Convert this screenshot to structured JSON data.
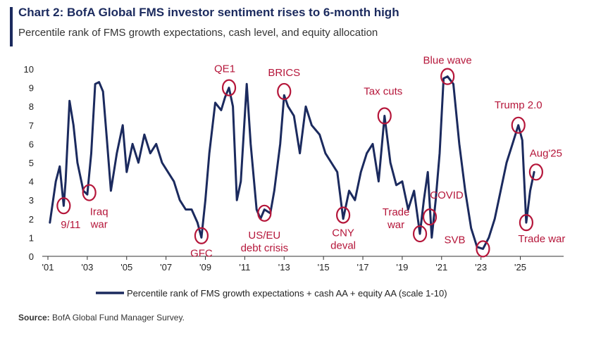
{
  "header": {
    "title": "Chart 2: BofA Global FMS investor sentiment rises to 6-month high",
    "subtitle": "Percentile rank of FMS growth expectations, cash level, and equity allocation"
  },
  "footer": {
    "source_label": "Source:",
    "source_text": "BofA Global Fund Manager Survey."
  },
  "colors": {
    "line": "#1b2a5e",
    "annotation": "#b5163a",
    "axis": "#333333"
  },
  "chart_data": {
    "type": "line",
    "title": "Chart 2: BofA Global FMS investor sentiment rises to 6-month high",
    "subtitle": "Percentile rank of FMS growth expectations, cash level, and equity allocation",
    "xlabel": "",
    "ylabel": "",
    "xlim": [
      2001.0,
      2027.2
    ],
    "ylim": [
      0,
      10
    ],
    "x_ticks": [
      2001,
      2003,
      2005,
      2007,
      2009,
      2011,
      2013,
      2015,
      2017,
      2019,
      2021,
      2023,
      2025
    ],
    "x_tick_labels": [
      "'01",
      "'03",
      "'05",
      "'07",
      "'09",
      "'11",
      "'13",
      "'15",
      "'17",
      "'19",
      "'21",
      "'23",
      "'25"
    ],
    "y_ticks": [
      0,
      1,
      2,
      3,
      4,
      5,
      6,
      7,
      8,
      9,
      10
    ],
    "y_tick_labels": [
      "0",
      "1",
      "2",
      "3",
      "4",
      "5",
      "6",
      "7",
      "8",
      "9",
      "10"
    ],
    "grid": false,
    "legend_position": "bottom",
    "series": [
      {
        "name": "Percentile rank of FMS growth expectations + cash AA + equity AA (scale 1-10)",
        "x": [
          2001.1,
          2001.4,
          2001.6,
          2001.8,
          2001.9,
          2002.1,
          2002.3,
          2002.5,
          2002.8,
          2003.0,
          2003.2,
          2003.4,
          2003.6,
          2003.8,
          2004.0,
          2004.2,
          2004.5,
          2004.8,
          2005.0,
          2005.3,
          2005.6,
          2005.9,
          2006.2,
          2006.5,
          2006.8,
          2007.1,
          2007.4,
          2007.7,
          2008.0,
          2008.3,
          2008.6,
          2008.8,
          2009.0,
          2009.2,
          2009.5,
          2009.8,
          2010.0,
          2010.2,
          2010.4,
          2010.6,
          2010.8,
          2011.1,
          2011.3,
          2011.6,
          2011.8,
          2012.0,
          2012.3,
          2012.5,
          2012.8,
          2013.0,
          2013.2,
          2013.5,
          2013.8,
          2014.1,
          2014.4,
          2014.8,
          2015.1,
          2015.4,
          2015.7,
          2016.0,
          2016.3,
          2016.6,
          2016.9,
          2017.2,
          2017.5,
          2017.8,
          2018.1,
          2018.4,
          2018.7,
          2019.0,
          2019.3,
          2019.6,
          2019.9,
          2020.1,
          2020.3,
          2020.5,
          2020.7,
          2020.9,
          2021.1,
          2021.3,
          2021.6,
          2021.9,
          2022.2,
          2022.5,
          2022.8,
          2023.1,
          2023.4,
          2023.7,
          2024.0,
          2024.3,
          2024.6,
          2024.9,
          2025.1,
          2025.3,
          2025.5,
          2025.7
        ],
        "values": [
          1.8,
          4.0,
          4.8,
          2.7,
          4.0,
          8.3,
          7.0,
          5.0,
          3.5,
          3.3,
          5.5,
          9.2,
          9.3,
          8.8,
          6.2,
          3.5,
          5.5,
          7.0,
          4.5,
          6.0,
          5.0,
          6.5,
          5.5,
          6.0,
          5.0,
          4.5,
          4.0,
          3.0,
          2.5,
          2.5,
          1.8,
          1.0,
          3.0,
          5.5,
          8.2,
          7.8,
          8.5,
          9.0,
          8.0,
          3.0,
          4.0,
          9.2,
          6.0,
          2.5,
          2.0,
          2.5,
          2.3,
          3.5,
          6.0,
          8.6,
          8.0,
          7.5,
          5.5,
          8.0,
          7.0,
          6.5,
          5.5,
          5.0,
          4.5,
          2.0,
          3.5,
          3.0,
          4.5,
          5.5,
          6.0,
          4.0,
          7.5,
          5.0,
          3.8,
          4.0,
          2.5,
          3.5,
          1.2,
          3.0,
          4.5,
          1.0,
          3.0,
          5.5,
          9.5,
          9.6,
          9.2,
          6.0,
          3.5,
          1.5,
          0.5,
          0.4,
          1.0,
          2.0,
          3.5,
          5.0,
          6.0,
          7.0,
          6.2,
          1.8,
          3.5,
          4.5
        ]
      }
    ],
    "annotations": [
      {
        "text": "9/11",
        "x": 2001.8,
        "y": 2.7
      },
      {
        "text": "Iraq war",
        "x": 2003.1,
        "y": 3.4
      },
      {
        "text": "GFC",
        "x": 2008.8,
        "y": 1.1
      },
      {
        "text": "QE1",
        "x": 2010.2,
        "y": 9.0
      },
      {
        "text": "US/EU debt crisis",
        "x": 2012.0,
        "y": 2.3
      },
      {
        "text": "BRICS",
        "x": 2013.0,
        "y": 8.8
      },
      {
        "text": "CNY deval",
        "x": 2016.0,
        "y": 2.2
      },
      {
        "text": "Tax cuts",
        "x": 2018.1,
        "y": 7.5
      },
      {
        "text": "Trade war",
        "x": 2019.9,
        "y": 1.2
      },
      {
        "text": "COVID",
        "x": 2020.4,
        "y": 2.1
      },
      {
        "text": "Blue wave",
        "x": 2021.3,
        "y": 9.6
      },
      {
        "text": "SVB",
        "x": 2023.1,
        "y": 0.4
      },
      {
        "text": "Trump 2.0",
        "x": 2024.9,
        "y": 7.0
      },
      {
        "text": "Trade war",
        "x": 2025.3,
        "y": 1.8
      },
      {
        "text": "Aug'25",
        "x": 2025.8,
        "y": 4.5
      }
    ]
  }
}
